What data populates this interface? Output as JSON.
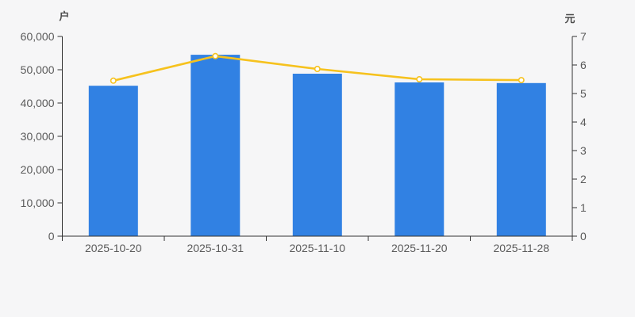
{
  "chart_data": {
    "type": "bar",
    "categories": [
      "2025-10-20",
      "2025-10-31",
      "2025-11-10",
      "2025-11-20",
      "2025-11-28"
    ],
    "series": [
      {
        "type": "bar",
        "axis": "left",
        "values": [
          45200,
          54500,
          48800,
          46200,
          46000
        ],
        "color": "#3181e3"
      },
      {
        "type": "line",
        "axis": "right",
        "values": [
          5.45,
          6.31,
          5.86,
          5.5,
          5.47
        ],
        "color": "#f6c21e",
        "marker": "circle",
        "marker_fill": "#ffffff"
      }
    ],
    "left_axis": {
      "label": "户",
      "min": 0,
      "max": 60000,
      "tick_interval": 10000,
      "tick_labels": [
        "0",
        "10,000",
        "20,000",
        "30,000",
        "40,000",
        "50,000",
        "60,000"
      ]
    },
    "right_axis": {
      "label": "元",
      "min": 0,
      "max": 7,
      "tick_interval": 1,
      "tick_labels": [
        "0",
        "1",
        "2",
        "3",
        "4",
        "5",
        "6",
        "7"
      ]
    },
    "grid": false,
    "legend": false,
    "colors": {
      "background": "#f6f6f7",
      "axis_line": "#333333",
      "tick_text": "#5a5a5a"
    }
  }
}
